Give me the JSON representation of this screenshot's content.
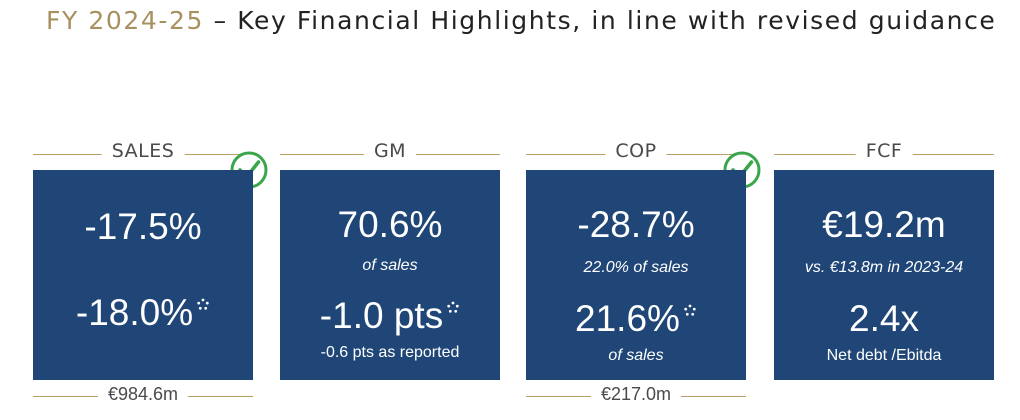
{
  "title": {
    "prefix": "FY 2024-25",
    "rest": " – Key Financial Highlights, in line with revised guidance"
  },
  "cards": [
    {
      "label": "SALES",
      "primary": "-17.5%",
      "secondary": "-18.0%",
      "footer": "€984.6m",
      "check": true
    },
    {
      "label": "GM",
      "primary": "70.6%",
      "primary_note": "of sales",
      "secondary": "-1.0 pts",
      "secondary_note": "-0.6 pts as reported",
      "check": false
    },
    {
      "label": "COP",
      "primary": "-28.7%",
      "primary_note": "22.0% of sales",
      "secondary": "21.6%",
      "secondary_note": "of sales",
      "footer": "€217.0m",
      "check": true
    },
    {
      "label": "FCF",
      "primary": "€19.2m",
      "primary_note": "vs. €13.8m in 2023-24",
      "secondary": "2.4x",
      "secondary_note": "Net debt /Ebitda",
      "check": false
    }
  ],
  "icons": {
    "check": "check-circle-icon",
    "star": "star-icon"
  },
  "colors": {
    "box": "#1f4677",
    "gold": "#b79f66",
    "check": "#3aa54a"
  }
}
